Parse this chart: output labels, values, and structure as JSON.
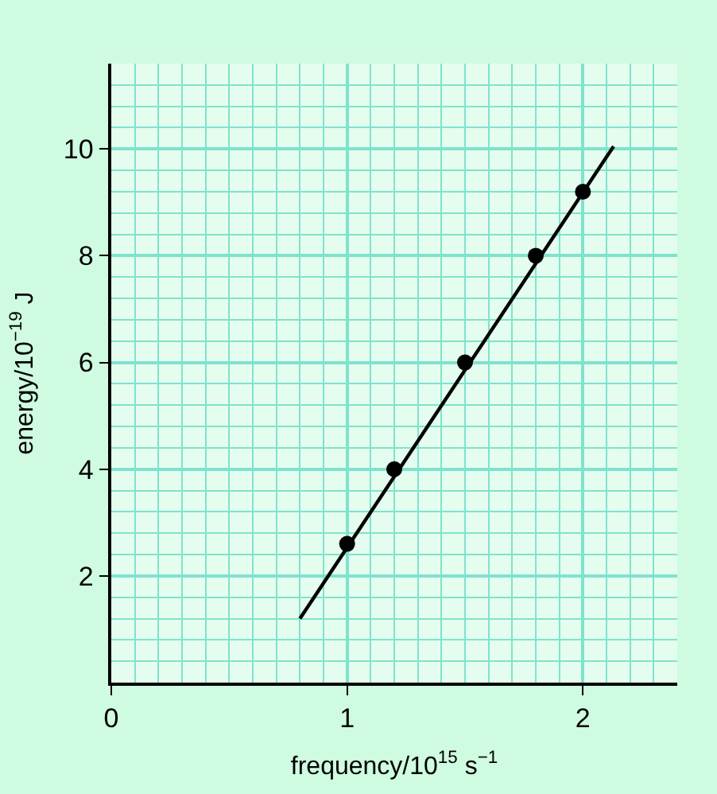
{
  "chart_data": {
    "type": "scatter",
    "xlabel": "frequency/10$^{15}$ s$^{−1}$",
    "ylabel": "energy/10$^{−19}$ J",
    "xlim": [
      0,
      2.4
    ],
    "ylim": [
      0,
      11.6
    ],
    "xticks": [
      0,
      {
        "value": 0.1,
        "label": null
      },
      {
        "value": 0.2,
        "label": null
      },
      {
        "value": 0.3,
        "label": null
      },
      {
        "value": 0.4,
        "label": null
      },
      {
        "value": 0.5,
        "label": null
      },
      {
        "value": 0.6,
        "label": null
      },
      {
        "value": 0.7,
        "label": null
      },
      {
        "value": 0.8,
        "label": null
      },
      {
        "value": 0.9,
        "label": null
      },
      1,
      {
        "value": 1.1,
        "label": null
      },
      {
        "value": 1.2,
        "label": null
      },
      {
        "value": 1.3,
        "label": null
      },
      {
        "value": 1.4,
        "label": null
      },
      {
        "value": 1.5,
        "label": null
      },
      {
        "value": 1.6,
        "label": null
      },
      {
        "value": 1.7,
        "label": null
      },
      {
        "value": 1.8,
        "label": null
      },
      {
        "value": 1.9,
        "label": null
      },
      2,
      {
        "value": 2.1,
        "label": null
      },
      {
        "value": 2.2,
        "label": null
      },
      {
        "value": 2.3,
        "label": null
      }
    ],
    "yticks": [
      {
        "value": 0.4,
        "label": null
      },
      {
        "value": 0.8,
        "label": null
      },
      {
        "value": 1.2,
        "label": null
      },
      {
        "value": 1.6,
        "label": null
      },
      2,
      {
        "value": 2.4,
        "label": null
      },
      {
        "value": 2.8,
        "label": null
      },
      {
        "value": 3.2,
        "label": null
      },
      {
        "value": 3.6,
        "label": null
      },
      4,
      {
        "value": 4.4,
        "label": null
      },
      {
        "value": 4.8,
        "label": null
      },
      {
        "value": 5.2,
        "label": null
      },
      {
        "value": 5.6,
        "label": null
      },
      6,
      {
        "value": 6.4,
        "label": null
      },
      {
        "value": 6.8,
        "label": null
      },
      {
        "value": 7.2,
        "label": null
      },
      {
        "value": 7.6,
        "label": null
      },
      8,
      {
        "value": 8.4,
        "label": null
      },
      {
        "value": 8.8,
        "label": null
      },
      {
        "value": 9.2,
        "label": null
      },
      {
        "value": 9.6,
        "label": null
      },
      10,
      {
        "value": 10.4,
        "label": null
      },
      {
        "value": 10.8,
        "label": null
      },
      {
        "value": 11.2,
        "label": null
      }
    ],
    "grid": true,
    "line_style": "solid",
    "series": [
      {
        "color": "#000000",
        "marker": "circle",
        "x": [
          1.0,
          1.2,
          1.5,
          1.8,
          2.0
        ],
        "values": [
          2.6,
          4.0,
          6.0,
          8.0,
          9.2
        ]
      },
      {
        "type": "line",
        "marker": "none",
        "color": "#000000",
        "x": [
          0.8,
          2.13
        ],
        "values": [
          1.2,
          10.05
        ]
      }
    ]
  }
}
